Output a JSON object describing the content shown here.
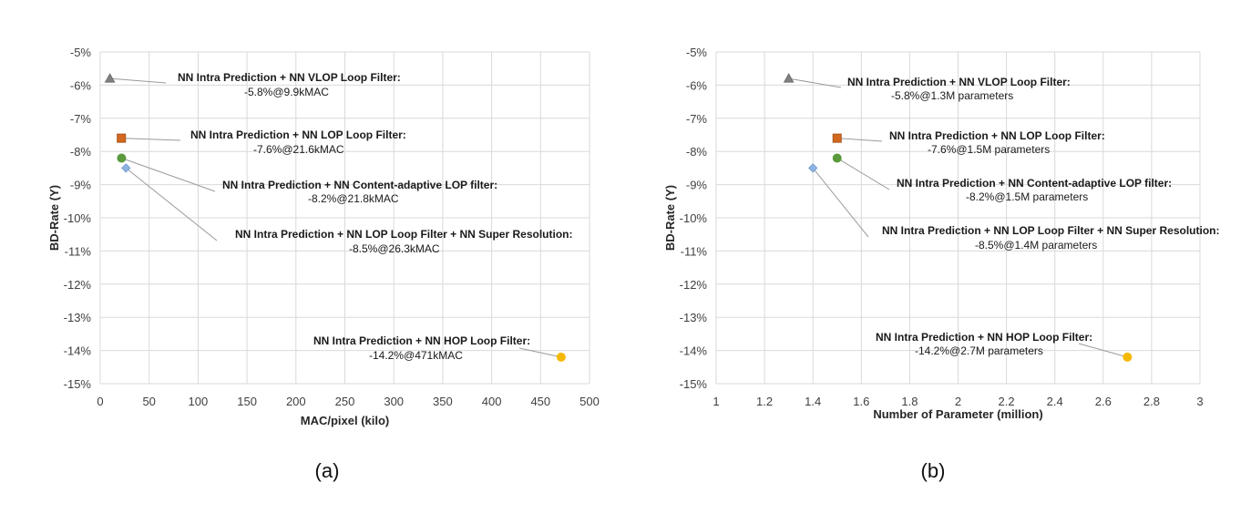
{
  "chart_data": [
    {
      "type": "scatter",
      "caption": "(a)",
      "xlabel": "MAC/pixel (kilo)",
      "ylabel": "BD-Rate (Y)",
      "xlim": [
        0,
        500
      ],
      "ylim": [
        -15,
        -5
      ],
      "x_ticks": [
        "0",
        "50",
        "100",
        "150",
        "200",
        "250",
        "300",
        "350",
        "400",
        "450",
        "500"
      ],
      "y_ticks": [
        "-5%",
        "-6%",
        "-7%",
        "-8%",
        "-9%",
        "-10%",
        "-11%",
        "-12%",
        "-13%",
        "-14%",
        "-15%"
      ],
      "grid": true,
      "points": [
        {
          "x": 9.9,
          "y": -5.8,
          "marker": "triangle",
          "color": "#808080",
          "label_bold": "NN Intra Prediction + NN VLOP Loop Filter",
          "label_value": "-5.8%@9.9kMAC"
        },
        {
          "x": 21.6,
          "y": -7.6,
          "marker": "square",
          "color": "#d2691e",
          "label_bold": "NN Intra Prediction + NN LOP Loop Filter",
          "label_value": "-7.6%@21.6kMAC"
        },
        {
          "x": 21.8,
          "y": -8.2,
          "marker": "circle",
          "color": "#5a9a3c",
          "label_bold": "NN Intra Prediction + NN Content-adaptive LOP filter",
          "label_value": "-8.2%@21.8kMAC"
        },
        {
          "x": 26.3,
          "y": -8.5,
          "marker": "diamond",
          "color": "#8fb4e3",
          "label_bold": "NN Intra Prediction + NN LOP Loop Filter + NN Super Resolution",
          "label_value": "-8.5%@26.3kMAC"
        },
        {
          "x": 471,
          "y": -14.2,
          "marker": "circle",
          "color": "#f5b800",
          "label_bold": "NN Intra Prediction + NN HOP Loop Filter",
          "label_value": "-14.2%@471kMAC"
        }
      ]
    },
    {
      "type": "scatter",
      "caption": "(b)",
      "xlabel": "Number of Parameter (million)",
      "ylabel": "BD-Rate (Y)",
      "xlim": [
        1,
        3
      ],
      "ylim": [
        -15,
        -5
      ],
      "x_ticks": [
        "1",
        "1.2",
        "1.4",
        "1.6",
        "1.8",
        "2",
        "2.2",
        "2.4",
        "2.6",
        "2.8",
        "3"
      ],
      "y_ticks": [
        "-5%",
        "-6%",
        "-7%",
        "-8%",
        "-9%",
        "-10%",
        "-11%",
        "-12%",
        "-13%",
        "-14%",
        "-15%"
      ],
      "grid": true,
      "points": [
        {
          "x": 1.3,
          "y": -5.8,
          "marker": "triangle",
          "color": "#808080",
          "label_bold": "NN Intra Prediction + NN VLOP Loop Filter",
          "label_value": "-5.8%@1.3M parameters"
        },
        {
          "x": 1.5,
          "y": -7.6,
          "marker": "square",
          "color": "#d2691e",
          "label_bold": "NN Intra Prediction + NN LOP Loop Filter",
          "label_value": "-7.6%@1.5M parameters"
        },
        {
          "x": 1.5,
          "y": -8.2,
          "marker": "circle",
          "color": "#5a9a3c",
          "label_bold": "NN Intra Prediction + NN Content-adaptive LOP filter",
          "label_value": "-8.2%@1.5M parameters"
        },
        {
          "x": 1.4,
          "y": -8.5,
          "marker": "diamond",
          "color": "#8fb4e3",
          "label_bold": "NN Intra Prediction + NN LOP Loop Filter + NN Super Resolution",
          "label_value": "-8.5%@1.4M parameters"
        },
        {
          "x": 2.7,
          "y": -14.2,
          "marker": "circle",
          "color": "#f5b800",
          "label_bold": "NN Intra Prediction + NN HOP Loop Filter",
          "label_value": "-14.2%@2.7M parameters"
        }
      ]
    }
  ]
}
